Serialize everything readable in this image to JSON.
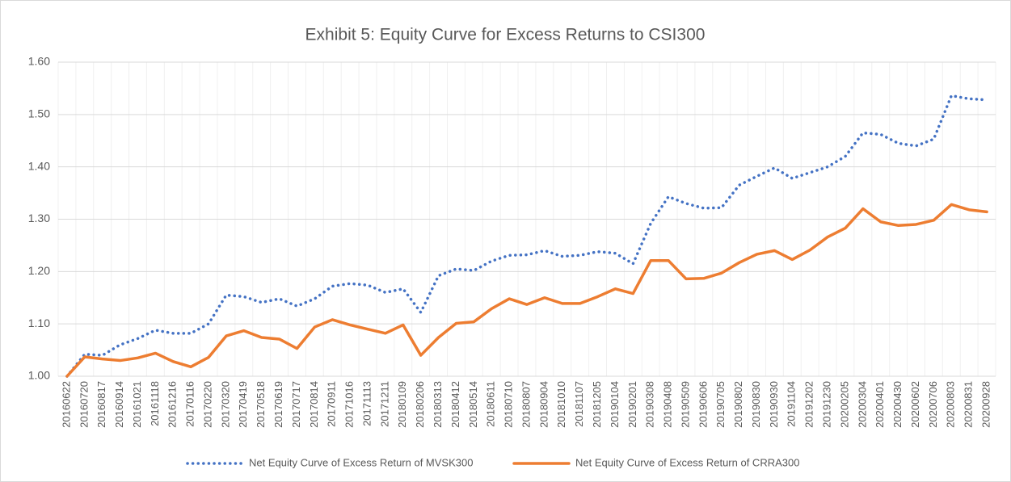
{
  "chart_data": {
    "type": "line",
    "title": "Exhibit 5: Equity Curve for Excess Returns to CSI300",
    "categories": [
      "20160622",
      "20160720",
      "20160817",
      "20160914",
      "20161021",
      "20161118",
      "20161216",
      "20170116",
      "20170220",
      "20170320",
      "20170419",
      "20170518",
      "20170619",
      "20170717",
      "20170814",
      "20170911",
      "20171016",
      "20171113",
      "20171211",
      "20180109",
      "20180206",
      "20180313",
      "20180412",
      "20180514",
      "20180611",
      "20180710",
      "20180807",
      "20180904",
      "20181010",
      "20181107",
      "20181205",
      "20190104",
      "20190201",
      "20190308",
      "20190408",
      "20190509",
      "20190606",
      "20190705",
      "20190802",
      "20190830",
      "20190930",
      "20191104",
      "20191202",
      "20191230",
      "20200205",
      "20200304",
      "20200401",
      "20200430",
      "20200602",
      "20200706",
      "20200803",
      "20200831",
      "20200928"
    ],
    "series": [
      {
        "name": "Net Equity Curve of Excess Return of MVSK300",
        "color": "#4472c4",
        "style": "dotted",
        "values": [
          1.0,
          1.042,
          1.04,
          1.06,
          1.072,
          1.088,
          1.082,
          1.082,
          1.1,
          1.155,
          1.152,
          1.141,
          1.148,
          1.134,
          1.148,
          1.172,
          1.177,
          1.174,
          1.16,
          1.167,
          1.122,
          1.192,
          1.205,
          1.202,
          1.22,
          1.231,
          1.232,
          1.24,
          1.229,
          1.231,
          1.238,
          1.235,
          1.215,
          1.292,
          1.343,
          1.33,
          1.321,
          1.322,
          1.365,
          1.382,
          1.398,
          1.378,
          1.389,
          1.4,
          1.42,
          1.465,
          1.462,
          1.445,
          1.44,
          1.453,
          1.536,
          1.53,
          1.528
        ]
      },
      {
        "name": "Net Equity Curve of Excess Return of CRRA300",
        "color": "#ed7d31",
        "style": "solid",
        "values": [
          1.0,
          1.037,
          1.033,
          1.03,
          1.035,
          1.044,
          1.028,
          1.018,
          1.036,
          1.077,
          1.087,
          1.074,
          1.071,
          1.053,
          1.094,
          1.108,
          1.098,
          1.09,
          1.082,
          1.098,
          1.04,
          1.074,
          1.101,
          1.104,
          1.129,
          1.148,
          1.137,
          1.15,
          1.139,
          1.139,
          1.152,
          1.167,
          1.158,
          1.221,
          1.221,
          1.186,
          1.187,
          1.197,
          1.217,
          1.233,
          1.24,
          1.223,
          1.241,
          1.266,
          1.283,
          1.32,
          1.295,
          1.288,
          1.29,
          1.298,
          1.328,
          1.318,
          1.314
        ]
      }
    ],
    "ylim": [
      1.0,
      1.6
    ],
    "yticks": [
      {
        "value": 1.0,
        "label": "1.00"
      },
      {
        "value": 1.1,
        "label": "1.10"
      },
      {
        "value": 1.2,
        "label": "1.20"
      },
      {
        "value": 1.3,
        "label": "1.30"
      },
      {
        "value": 1.4,
        "label": "1.40"
      },
      {
        "value": 1.5,
        "label": "1.50"
      },
      {
        "value": 1.6,
        "label": "1.60"
      }
    ],
    "grid": true,
    "legend": "bottom"
  }
}
